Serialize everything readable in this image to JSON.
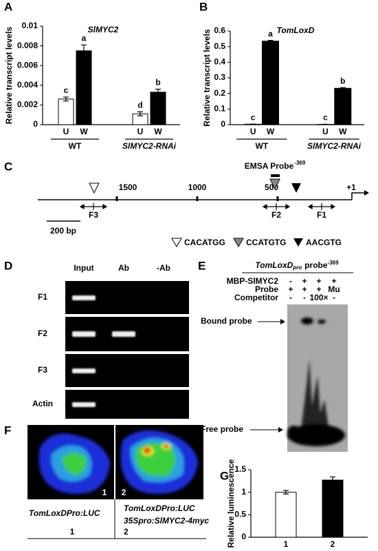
{
  "chart_data": [
    {
      "type": "bar",
      "panel_label": "A",
      "title": "SlMYC2",
      "y_label": "Relative transcript levels",
      "categories": [
        "U",
        "W",
        "U",
        "W"
      ],
      "groups": [
        "WT",
        "SlMYC2-RNAi"
      ],
      "values": [
        0.0026,
        0.0075,
        0.0011,
        0.0033
      ],
      "errors": [
        0.0002,
        0.0006,
        0.0002,
        0.0003
      ],
      "colors": [
        "#ffffff",
        "#000000",
        "#ffffff",
        "#000000"
      ],
      "annotations": [
        "c",
        "a",
        "d",
        "b"
      ],
      "ylim": [
        0,
        0.01
      ],
      "yticks": [
        0,
        0.002,
        0.004,
        0.006,
        0.008,
        0.01
      ]
    },
    {
      "type": "bar",
      "panel_label": "B",
      "title": "TomLoxD",
      "y_label": "Relative transcript levels",
      "categories": [
        "U",
        "W",
        "U",
        "W"
      ],
      "groups": [
        "WT",
        "SlMYC2-RNAi"
      ],
      "values": [
        0.003,
        0.535,
        0.002,
        0.233
      ],
      "errors": [
        0.001,
        0.005,
        0.001,
        0.004
      ],
      "colors": [
        "#ffffff",
        "#000000",
        "#ffffff",
        "#000000"
      ],
      "annotations": [
        "c",
        "a",
        "c",
        "b"
      ],
      "ylim": [
        0,
        0.6
      ],
      "yticks": [
        0,
        0.1,
        0.2,
        0.3,
        0.4,
        0.5,
        0.6
      ]
    },
    {
      "type": "bar",
      "panel_label": "G",
      "y_label": "Relative luminescence",
      "categories": [
        "1",
        "2"
      ],
      "values": [
        1,
        1.27
      ],
      "errors": [
        0.04,
        0.07
      ],
      "colors": [
        "#ffffff",
        "#000000"
      ],
      "ylim": [
        0,
        1.5
      ],
      "yticks": [
        0,
        0.5,
        1,
        1.5
      ]
    }
  ],
  "promoter_map": {
    "panel_label": "C",
    "probe_label": "EMSA Probe",
    "probe_superscript": "-369",
    "positions": [
      "1500",
      "1000",
      "500",
      "+1"
    ],
    "fragments": [
      "F3",
      "F2",
      "F1"
    ],
    "scale_bar": "200 bp",
    "motifs": [
      "CACATGG",
      "CCATGTG",
      "AACGTG"
    ]
  },
  "chip_gel": {
    "panel_label": "D",
    "columns": [
      "Input",
      "Ab",
      "-Ab"
    ],
    "rows": [
      "F1",
      "F2",
      "F3",
      "Actin"
    ]
  },
  "emsa": {
    "panel_label": "E",
    "probe_gene": "TomLoxD",
    "probe_subscript": "pro",
    "probe_text": "probe",
    "probe_superscript": "-369",
    "row_labels": [
      "MBP-SlMYC2",
      "Probe",
      "Competitor"
    ],
    "lanes": [
      [
        "-",
        "+",
        "+",
        "+"
      ],
      [
        "+",
        "+",
        "+",
        "Mu"
      ],
      [
        "-",
        "-",
        "100×",
        "-"
      ]
    ],
    "bound_label": "Bound probe",
    "free_label": "Free probe"
  },
  "luciferase": {
    "panel_label": "F",
    "image_labels": [
      "1",
      "2"
    ],
    "constructs": [
      [
        "TomLoxDPro:LUC"
      ],
      [
        "TomLoxDPro:LUC",
        "35Spro:SlMYC2-4myc"
      ]
    ],
    "lane_numbers": [
      "1",
      "2"
    ]
  }
}
